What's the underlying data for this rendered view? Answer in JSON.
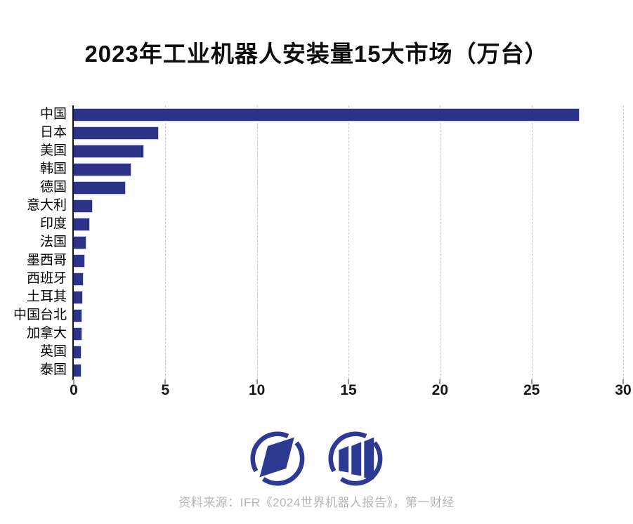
{
  "header": {
    "title": "2023年工业机器人安装量15大市场（万台）"
  },
  "chart_data": {
    "type": "bar",
    "orientation": "horizontal",
    "title": "2023年工业机器人安装量15大市场（万台）",
    "unit": "万台",
    "categories": [
      "中国",
      "日本",
      "美国",
      "韩国",
      "德国",
      "意大利",
      "印度",
      "法国",
      "墨西哥",
      "西班牙",
      "土耳其",
      "中国台北",
      "加拿大",
      "英国",
      "泰国"
    ],
    "values": [
      27.6,
      4.6,
      3.8,
      3.1,
      2.8,
      1.0,
      0.85,
      0.64,
      0.58,
      0.51,
      0.46,
      0.43,
      0.42,
      0.38,
      0.37
    ],
    "xlabel": "",
    "ylabel": "",
    "xlim": [
      0,
      30
    ],
    "x_ticks": [
      0,
      5,
      10,
      15,
      20,
      25,
      30
    ],
    "grid": "dashed-vertical",
    "legend": "none",
    "bar_color": "#2b3287",
    "bar_border_color": "#c9d1ea",
    "axis_color": "#161616",
    "gridline_color": "#c8c8c8"
  },
  "footer": {
    "source_text": "资料来源：IFR《2024世界机器人报告》，第一财经",
    "logo_color": "#2c3a92",
    "logos": [
      "yicai-parallelogram-logo",
      "yicai-bars-logo"
    ]
  }
}
